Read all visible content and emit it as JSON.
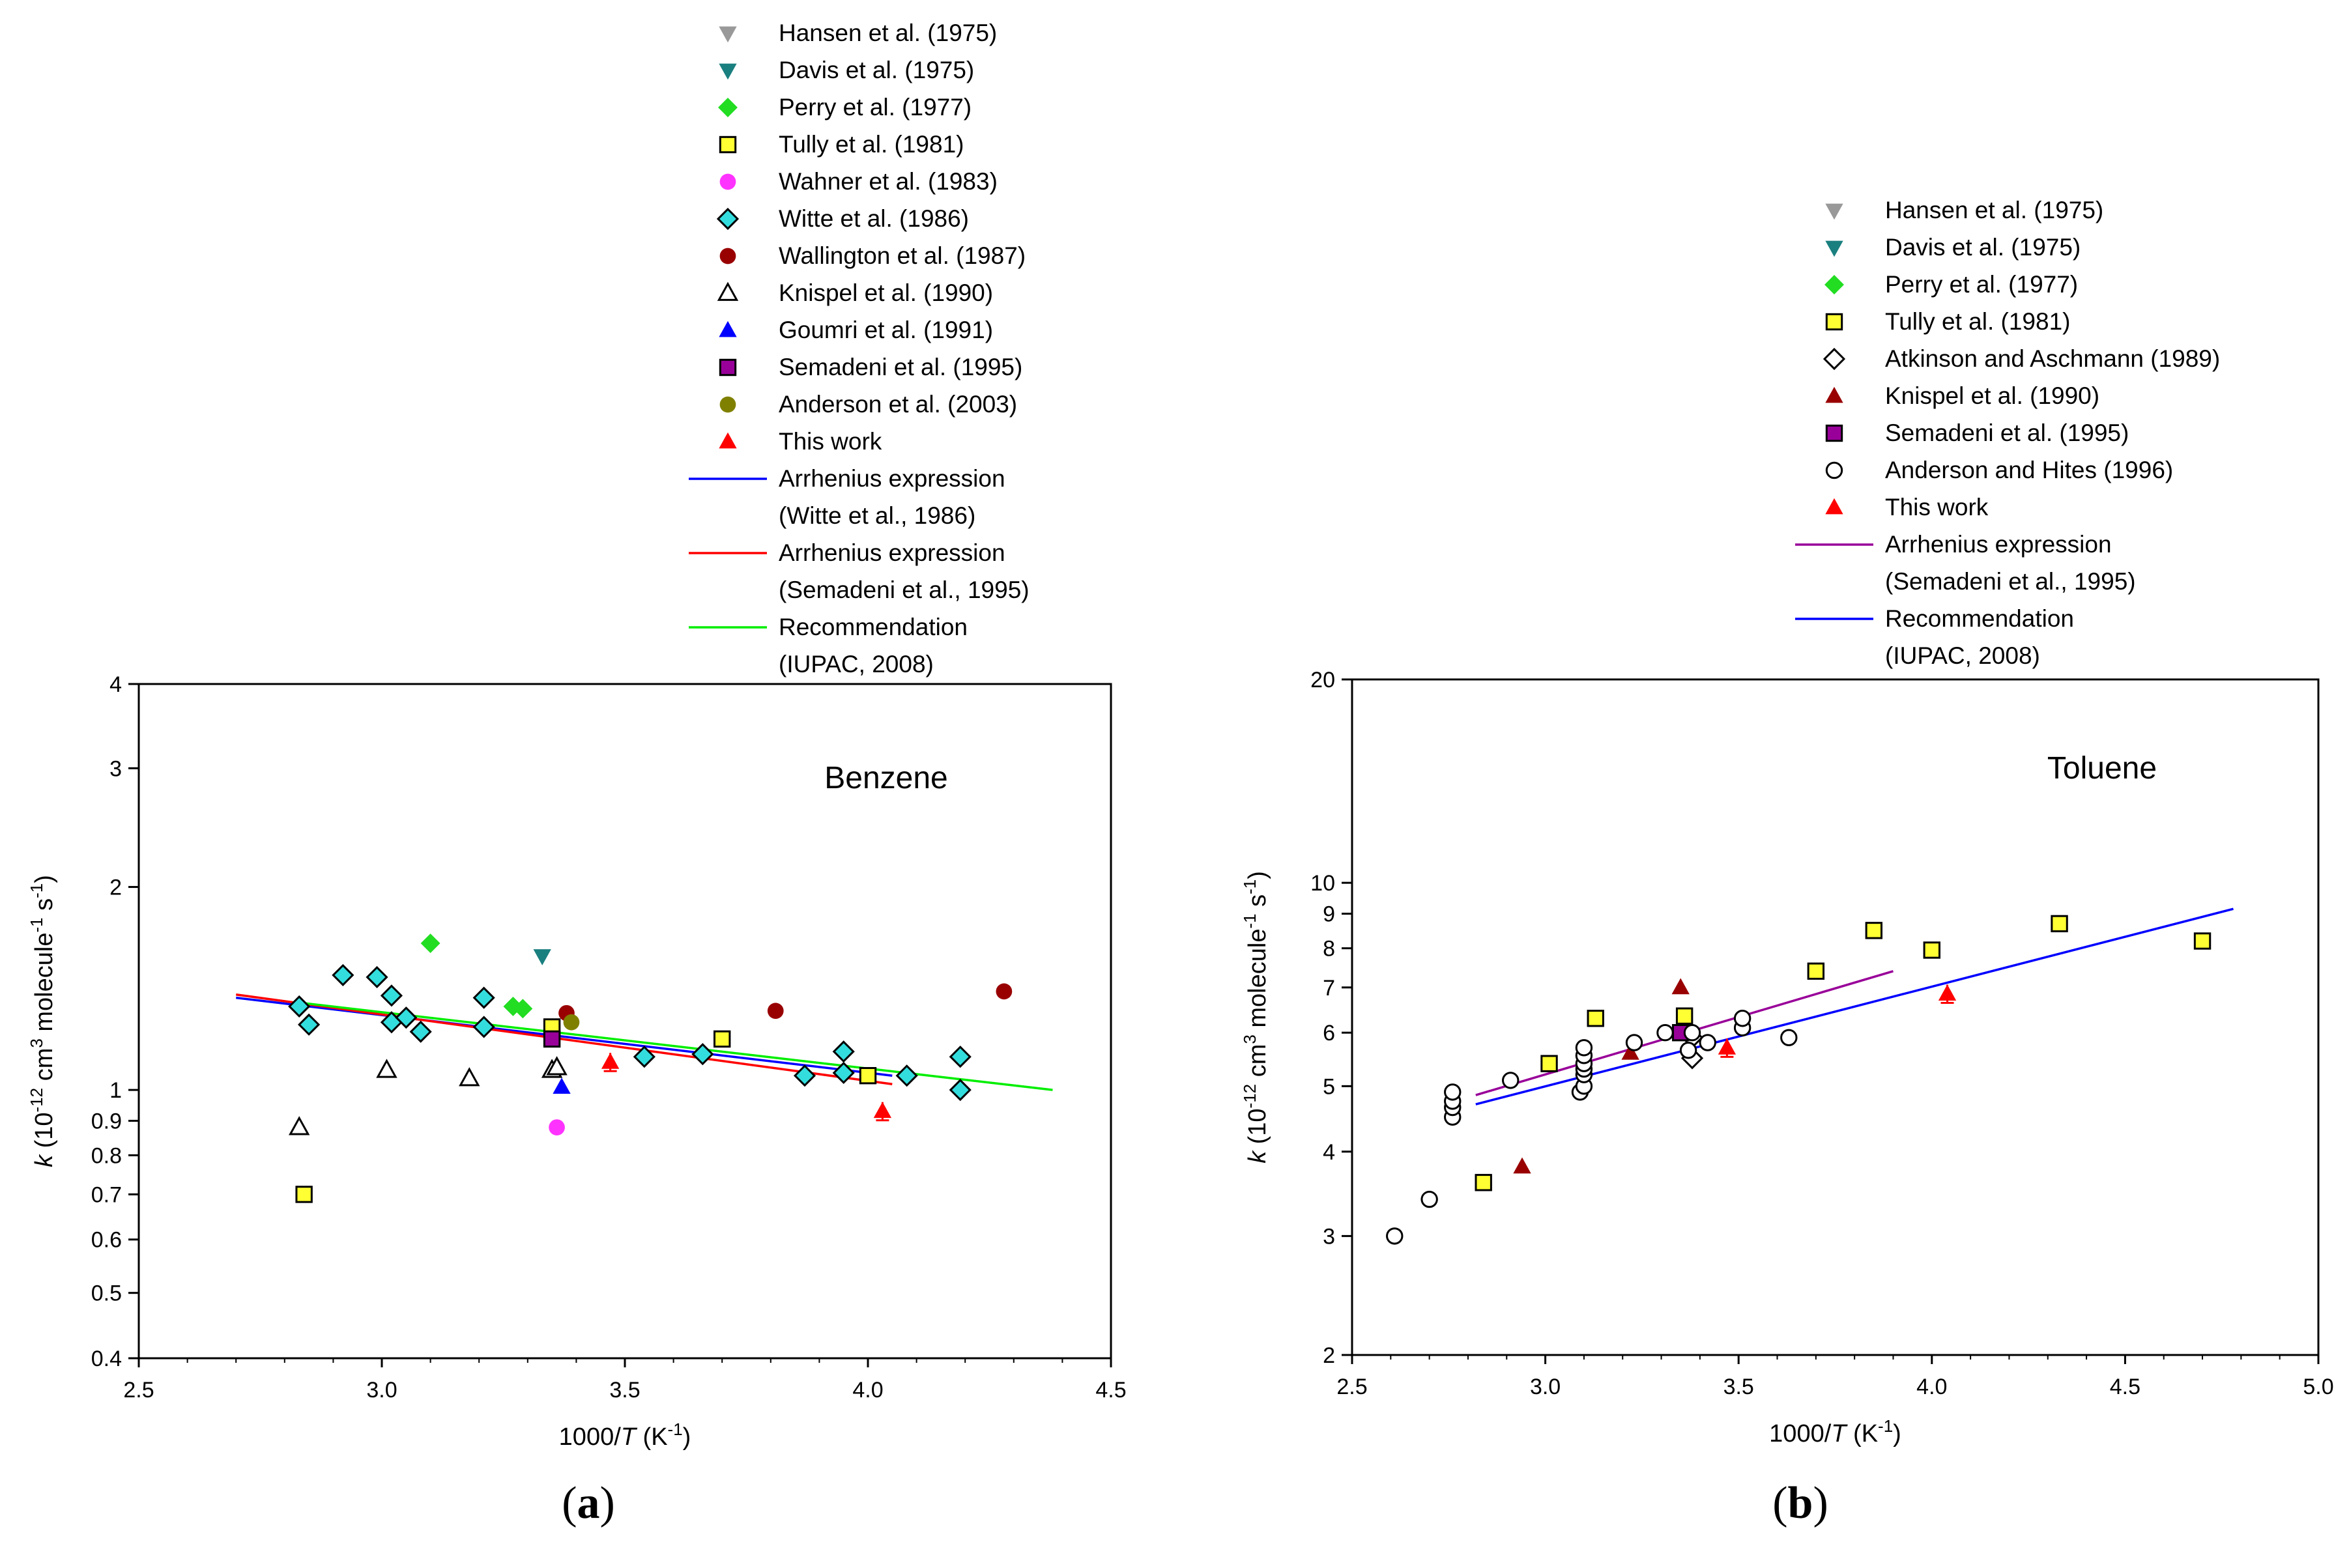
{
  "chart_data": [
    {
      "panel_label": "(a)",
      "type": "scatter",
      "title": "Benzene",
      "xlabel": "1000/T (K-1)",
      "ylabel": "k (10-12 cm3 molecule-1 s-1)",
      "xlim": [
        2.5,
        4.5
      ],
      "ylim": [
        0.4,
        4
      ],
      "yscale": "log",
      "xticks": [
        "2.5",
        "3.0",
        "3.5",
        "4.0",
        "4.5"
      ],
      "yticks": [
        "0.4",
        "0.5",
        "0.6",
        "0.7",
        "0.8",
        "0.9",
        "1",
        "2",
        "3",
        "4"
      ],
      "series": [
        {
          "name": "Hansen et al. (1975)",
          "marker": "tri-down",
          "color": "#999999",
          "points": []
        },
        {
          "name": "Davis et al. (1975)",
          "marker": "tri-down",
          "color": "#1a7f7f",
          "points": [
            [
              3.33,
              1.58
            ]
          ]
        },
        {
          "name": "Perry et al. (1977)",
          "marker": "diamond",
          "color": "#22dd22",
          "points": [
            [
              3.1,
              1.65
            ],
            [
              3.27,
              1.33
            ],
            [
              3.29,
              1.32
            ]
          ]
        },
        {
          "name": "Tully et al. (1981)",
          "marker": "square",
          "color": "#ffff33",
          "points": [
            [
              2.84,
              0.7
            ],
            [
              3.35,
              1.24
            ],
            [
              3.7,
              1.19
            ],
            [
              4.0,
              1.05
            ]
          ]
        },
        {
          "name": "Wahner et al. (1983)",
          "marker": "circle",
          "color": "#ff33ff",
          "points": [
            [
              3.36,
              0.88
            ]
          ]
        },
        {
          "name": "Witte et al. (1986)",
          "marker": "diamond",
          "color": "#33dddd",
          "points": [
            [
              2.83,
              1.33
            ],
            [
              2.85,
              1.25
            ],
            [
              2.92,
              1.48
            ],
            [
              2.99,
              1.47
            ],
            [
              3.02,
              1.38
            ],
            [
              3.02,
              1.26
            ],
            [
              3.05,
              1.28
            ],
            [
              3.08,
              1.22
            ],
            [
              3.21,
              1.37
            ],
            [
              3.21,
              1.24
            ],
            [
              3.54,
              1.12
            ],
            [
              3.66,
              1.13
            ],
            [
              3.87,
              1.05
            ],
            [
              3.95,
              1.14
            ],
            [
              3.95,
              1.06
            ],
            [
              4.08,
              1.05
            ],
            [
              4.19,
              1.12
            ],
            [
              4.19,
              1.0
            ]
          ]
        },
        {
          "name": "Wallington et al. (1987)",
          "marker": "circle",
          "color": "#990000",
          "points": [
            [
              3.38,
              1.3
            ],
            [
              3.81,
              1.31
            ],
            [
              4.28,
              1.4
            ]
          ]
        },
        {
          "name": "Knispel et al. (1990)",
          "marker": "tri-up-open",
          "color": "#ffffff",
          "points": [
            [
              2.83,
              0.88
            ],
            [
              3.01,
              1.07
            ],
            [
              3.18,
              1.04
            ],
            [
              3.35,
              1.07
            ],
            [
              3.36,
              1.08
            ]
          ]
        },
        {
          "name": "Goumri et al. (1991)",
          "marker": "tri-up",
          "color": "#0000ff",
          "points": [
            [
              3.37,
              1.01
            ]
          ]
        },
        {
          "name": "Semadeni et al. (1995)",
          "marker": "square",
          "color": "#990099",
          "points": [
            [
              3.35,
              1.19
            ]
          ]
        },
        {
          "name": "Anderson et al. (2003)",
          "marker": "circle",
          "color": "#808000",
          "points": [
            [
              3.39,
              1.26
            ]
          ]
        },
        {
          "name": "This work",
          "marker": "tri-up",
          "color": "#ff0000",
          "points": [
            [
              3.47,
              1.1
            ],
            [
              4.03,
              0.93
            ]
          ]
        }
      ],
      "lines": [
        {
          "name": "Arrhenius expression (Witte et al., 1986)",
          "color": "#0000ff",
          "points": [
            [
              2.7,
              1.37
            ],
            [
              4.05,
              1.05
            ]
          ]
        },
        {
          "name": "Arrhenius expression (Semadeni et al., 1995)",
          "color": "#ff0000",
          "points": [
            [
              2.7,
              1.385
            ],
            [
              4.05,
              1.02
            ]
          ]
        },
        {
          "name": "Recommendation (IUPAC, 2008)",
          "color": "#00ee00",
          "points": [
            [
              2.82,
              1.35
            ],
            [
              4.38,
              1.0
            ]
          ]
        }
      ],
      "legend": [
        {
          "label": "Hansen et al. (1975)",
          "marker": "tri-down",
          "color": "#999999"
        },
        {
          "label": "Davis et al. (1975)",
          "marker": "tri-down",
          "color": "#1a7f7f"
        },
        {
          "label": "Perry et al. (1977)",
          "marker": "diamond",
          "color": "#22dd22"
        },
        {
          "label": "Tully et al. (1981)",
          "marker": "square",
          "color": "#ffff33"
        },
        {
          "label": "Wahner et al. (1983)",
          "marker": "circle",
          "color": "#ff33ff"
        },
        {
          "label": "Witte et al. (1986)",
          "marker": "diamond",
          "color": "#33dddd"
        },
        {
          "label": "Wallington et al. (1987)",
          "marker": "circle",
          "color": "#990000"
        },
        {
          "label": "Knispel et al. (1990)",
          "marker": "tri-up-open",
          "color": "#ffffff"
        },
        {
          "label": "Goumri et al. (1991)",
          "marker": "tri-up",
          "color": "#0000ff"
        },
        {
          "label": "Semadeni et al. (1995)",
          "marker": "square",
          "color": "#990099"
        },
        {
          "label": "Anderson et al. (2003)",
          "marker": "circle",
          "color": "#808000"
        },
        {
          "label": "This work",
          "marker": "tri-up",
          "color": "#ff0000"
        },
        {
          "label": "Arrhenius expression",
          "label2": "(Witte et al., 1986)",
          "marker": "line",
          "color": "#0000ff"
        },
        {
          "label": "Arrhenius expression",
          "label2": "(Semadeni et al., 1995)",
          "marker": "line",
          "color": "#ff0000"
        },
        {
          "label": "Recommendation",
          "label2": "(IUPAC, 2008)",
          "marker": "line",
          "color": "#00ee00"
        }
      ]
    },
    {
      "panel_label": "(b)",
      "type": "scatter",
      "title": "Toluene",
      "xlabel": "1000/T (K-1)",
      "ylabel": "k (10-12 cm3 molecule-1 s-1)",
      "xlim": [
        2.5,
        5.0
      ],
      "ylim": [
        2,
        20
      ],
      "yscale": "log",
      "xticks": [
        "2.5",
        "3.0",
        "3.5",
        "4.0",
        "4.5",
        "5.0"
      ],
      "yticks": [
        "2",
        "3",
        "4",
        "5",
        "6",
        "7",
        "8",
        "9",
        "10",
        "20"
      ],
      "series": [
        {
          "name": "Hansen et al. (1975)",
          "marker": "tri-down",
          "color": "#999999",
          "points": []
        },
        {
          "name": "Davis et al. (1975)",
          "marker": "tri-down",
          "color": "#1a7f7f",
          "points": []
        },
        {
          "name": "Perry et al. (1977)",
          "marker": "diamond",
          "color": "#22dd22",
          "points": []
        },
        {
          "name": "Tully et al. (1981)",
          "marker": "square",
          "color": "#ffff33",
          "points": [
            [
              2.84,
              3.6
            ],
            [
              3.01,
              5.4
            ],
            [
              3.13,
              6.3
            ],
            [
              3.36,
              6.35
            ],
            [
              3.7,
              7.4
            ],
            [
              3.85,
              8.5
            ],
            [
              4.0,
              7.95
            ],
            [
              4.33,
              8.7
            ],
            [
              4.7,
              8.2
            ]
          ]
        },
        {
          "name": "Atkinson and Aschmann (1989)",
          "marker": "diamond-open",
          "color": "#ffffff",
          "points": [
            [
              3.38,
              5.5
            ],
            [
              3.38,
              5.9
            ]
          ]
        },
        {
          "name": "Knispel et al. (1990)",
          "marker": "tri-up",
          "color": "#990000",
          "points": [
            [
              2.94,
              3.8
            ],
            [
              3.22,
              5.6
            ],
            [
              3.35,
              7.0
            ]
          ]
        },
        {
          "name": "Semadeni et al. (1995)",
          "marker": "square",
          "color": "#990099",
          "points": [
            [
              3.35,
              6.0
            ]
          ]
        },
        {
          "name": "Anderson and Hites (1996)",
          "marker": "circle-open",
          "color": "#ffffff",
          "points": [
            [
              2.61,
              3.0
            ],
            [
              2.7,
              3.4
            ],
            [
              2.76,
              4.5
            ],
            [
              2.76,
              4.65
            ],
            [
              2.76,
              4.75
            ],
            [
              2.76,
              4.9
            ],
            [
              2.91,
              5.1
            ],
            [
              3.09,
              4.9
            ],
            [
              3.1,
              5.0
            ],
            [
              3.1,
              5.2
            ],
            [
              3.1,
              5.3
            ],
            [
              3.1,
              5.4
            ],
            [
              3.1,
              5.55
            ],
            [
              3.1,
              5.7
            ],
            [
              3.23,
              5.8
            ],
            [
              3.31,
              6.0
            ],
            [
              3.37,
              5.65
            ],
            [
              3.38,
              6.0
            ],
            [
              3.42,
              5.8
            ],
            [
              3.51,
              6.1
            ],
            [
              3.51,
              6.3
            ],
            [
              3.63,
              5.9
            ]
          ]
        },
        {
          "name": "This work",
          "marker": "tri-up",
          "color": "#ff0000",
          "points": [
            [
              3.47,
              5.7
            ],
            [
              4.04,
              6.85
            ]
          ]
        }
      ],
      "lines": [
        {
          "name": "Arrhenius expression (Semadeni et al., 1995)",
          "color": "#990099",
          "points": [
            [
              2.82,
              4.85
            ],
            [
              3.9,
              7.4
            ]
          ]
        },
        {
          "name": "Recommendation (IUPAC, 2008)",
          "color": "#0000ff",
          "points": [
            [
              2.82,
              4.7
            ],
            [
              4.78,
              9.15
            ]
          ]
        }
      ],
      "legend": [
        {
          "label": "Hansen et al. (1975)",
          "marker": "tri-down",
          "color": "#999999"
        },
        {
          "label": "Davis et al. (1975)",
          "marker": "tri-down",
          "color": "#1a7f7f"
        },
        {
          "label": "Perry et al. (1977)",
          "marker": "diamond",
          "color": "#22dd22"
        },
        {
          "label": "Tully et al. (1981)",
          "marker": "square",
          "color": "#ffff33"
        },
        {
          "label": "Atkinson and Aschmann (1989)",
          "marker": "diamond-open",
          "color": "#ffffff"
        },
        {
          "label": "Knispel et al. (1990)",
          "marker": "tri-up",
          "color": "#990000"
        },
        {
          "label": "Semadeni et al. (1995)",
          "marker": "square",
          "color": "#990099"
        },
        {
          "label": "Anderson and Hites (1996)",
          "marker": "circle-open",
          "color": "#ffffff"
        },
        {
          "label": "This work",
          "marker": "tri-up",
          "color": "#ff0000"
        },
        {
          "label": "Arrhenius expression",
          "label2": "(Semadeni et al., 1995)",
          "marker": "line",
          "color": "#990099"
        },
        {
          "label": "Recommendation",
          "label2": "(IUPAC, 2008)",
          "marker": "line",
          "color": "#0000ff"
        }
      ]
    }
  ]
}
